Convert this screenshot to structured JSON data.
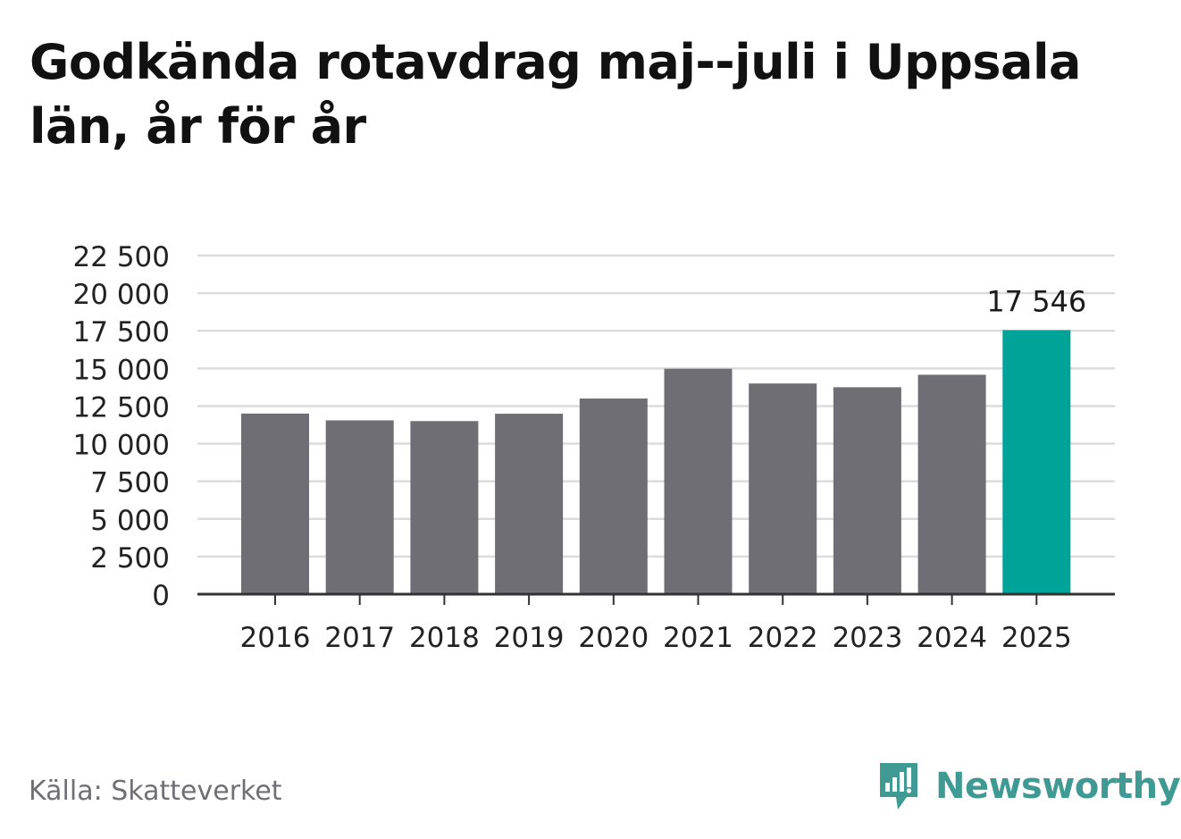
{
  "header": {
    "title": "Godkända rotavdrag maj--juli i Uppsala län, år för år"
  },
  "chart_data": {
    "type": "bar",
    "categories": [
      "2016",
      "2017",
      "2018",
      "2019",
      "2020",
      "2021",
      "2022",
      "2023",
      "2024",
      "2025"
    ],
    "values": [
      12000,
      11550,
      11500,
      11990,
      13000,
      14980,
      14000,
      13750,
      14580,
      17546
    ],
    "ylim": [
      0,
      22500
    ],
    "yticks": [
      0,
      2500,
      5000,
      7500,
      10000,
      12500,
      15000,
      17500,
      20000,
      22500
    ],
    "ytick_labels": [
      "0",
      "2 500",
      "5 000",
      "7 500",
      "10 000",
      "12 500",
      "15 000",
      "17 500",
      "20 000",
      "22 500"
    ],
    "highlight_index": 9,
    "highlight_label": "17 546",
    "grid": true,
    "colors": {
      "bar": "#6f6e75",
      "highlight": "#00a398",
      "grid": "#dcdcdc",
      "axis": "#333333"
    }
  },
  "footer": {
    "source": "Källa: Skatteverket",
    "brand": "Newsworthy"
  },
  "brand_color": "#3f9a94"
}
